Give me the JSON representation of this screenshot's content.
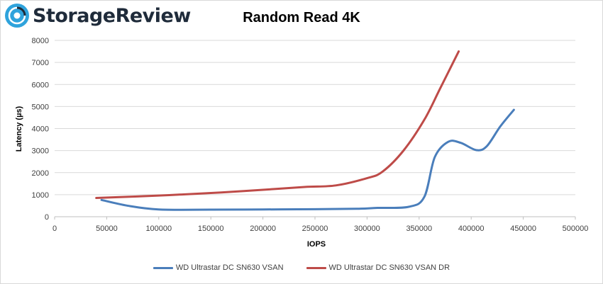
{
  "branding": {
    "logo_text": "StorageReview",
    "logo_icon": "storage-review-logo-icon"
  },
  "chart_data": {
    "type": "line",
    "title": "Random Read 4K",
    "xlabel": "IOPS",
    "ylabel": "Latency (µs)",
    "xlim": [
      0,
      500000
    ],
    "ylim": [
      0,
      8000
    ],
    "x_ticks": [
      "0",
      "50000",
      "100000",
      "150000",
      "200000",
      "250000",
      "300000",
      "350000",
      "400000",
      "450000",
      "500000"
    ],
    "y_ticks": [
      "0",
      "1000",
      "2000",
      "3000",
      "4000",
      "5000",
      "6000",
      "7000",
      "8000"
    ],
    "grid": "horizontal",
    "legend_position": "bottom",
    "series": [
      {
        "name": "WD Ultrastar DC SN630 VSAN",
        "color": "#4a7ebb",
        "x": [
          45000,
          70000,
          100000,
          150000,
          200000,
          250000,
          290000,
          310000,
          340000,
          355000,
          365000,
          378000,
          390000,
          405000,
          415000,
          428000,
          441000
        ],
        "y": [
          760,
          500,
          330,
          320,
          330,
          340,
          360,
          400,
          450,
          900,
          2700,
          3400,
          3350,
          3020,
          3200,
          4100,
          4850
        ]
      },
      {
        "name": "WD Ultrastar DC SN630 VSAN DR",
        "color": "#be4b48",
        "x": [
          40000,
          110000,
          160000,
          200000,
          240000,
          270000,
          300000,
          315000,
          335000,
          355000,
          370000,
          388000
        ],
        "y": [
          850,
          980,
          1100,
          1220,
          1350,
          1420,
          1750,
          2050,
          3000,
          4400,
          5800,
          7500
        ]
      }
    ]
  }
}
